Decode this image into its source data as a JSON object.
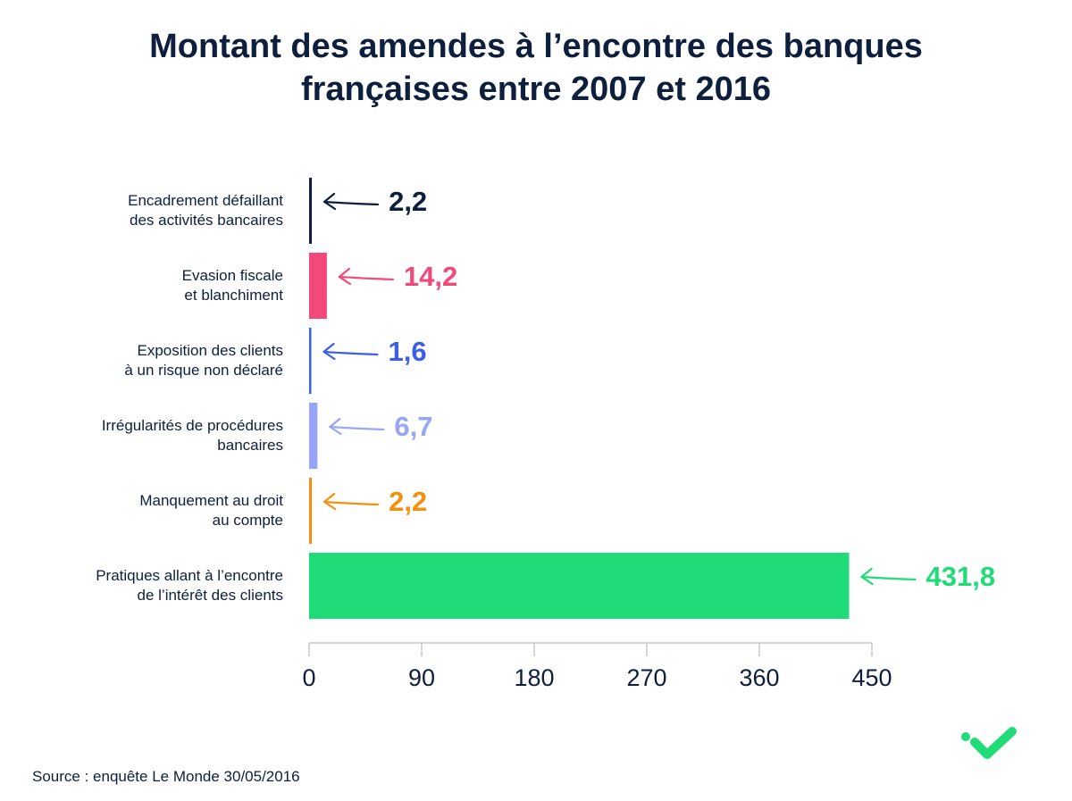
{
  "title_lines": [
    "Montant des amendes à l’encontre des banques",
    "françaises entre 2007 et 2016"
  ],
  "source": "Source : enquête Le Monde 30/05/2016",
  "colors": {
    "text": "#0d1f3c",
    "axis": "#c8c8c8"
  },
  "chart_data": {
    "type": "bar",
    "orientation": "horizontal",
    "title": "Montant des amendes à l’encontre des banques françaises entre 2007 et 2016",
    "xlim": [
      0,
      450
    ],
    "xticks": [
      0,
      90,
      180,
      270,
      360,
      450
    ],
    "xtick_labels": [
      "0",
      "90",
      "180",
      "270",
      "360",
      "450"
    ],
    "grid": false,
    "categories": [
      [
        "Encadrement défaillant",
        "des activités bancaires"
      ],
      [
        "Evasion fiscale",
        "et blanchiment"
      ],
      [
        "Exposition des clients",
        "à un risque non déclaré"
      ],
      [
        "Irrégularités de procédures",
        "bancaires"
      ],
      [
        "Manquement au droit",
        "au compte"
      ],
      [
        "Pratiques allant à l’encontre",
        "de l’intérêt des clients"
      ]
    ],
    "values": [
      2.2,
      14.2,
      1.6,
      6.7,
      2.2,
      431.8
    ],
    "value_labels": [
      "2,2",
      "14,2",
      "1,6",
      "6,7",
      "2,2",
      "431,8"
    ],
    "bar_colors": [
      "#0d1f3c",
      "#f2487a",
      "#3d5ee6",
      "#98a6f7",
      "#f5900f",
      "#1fdc78"
    ]
  }
}
